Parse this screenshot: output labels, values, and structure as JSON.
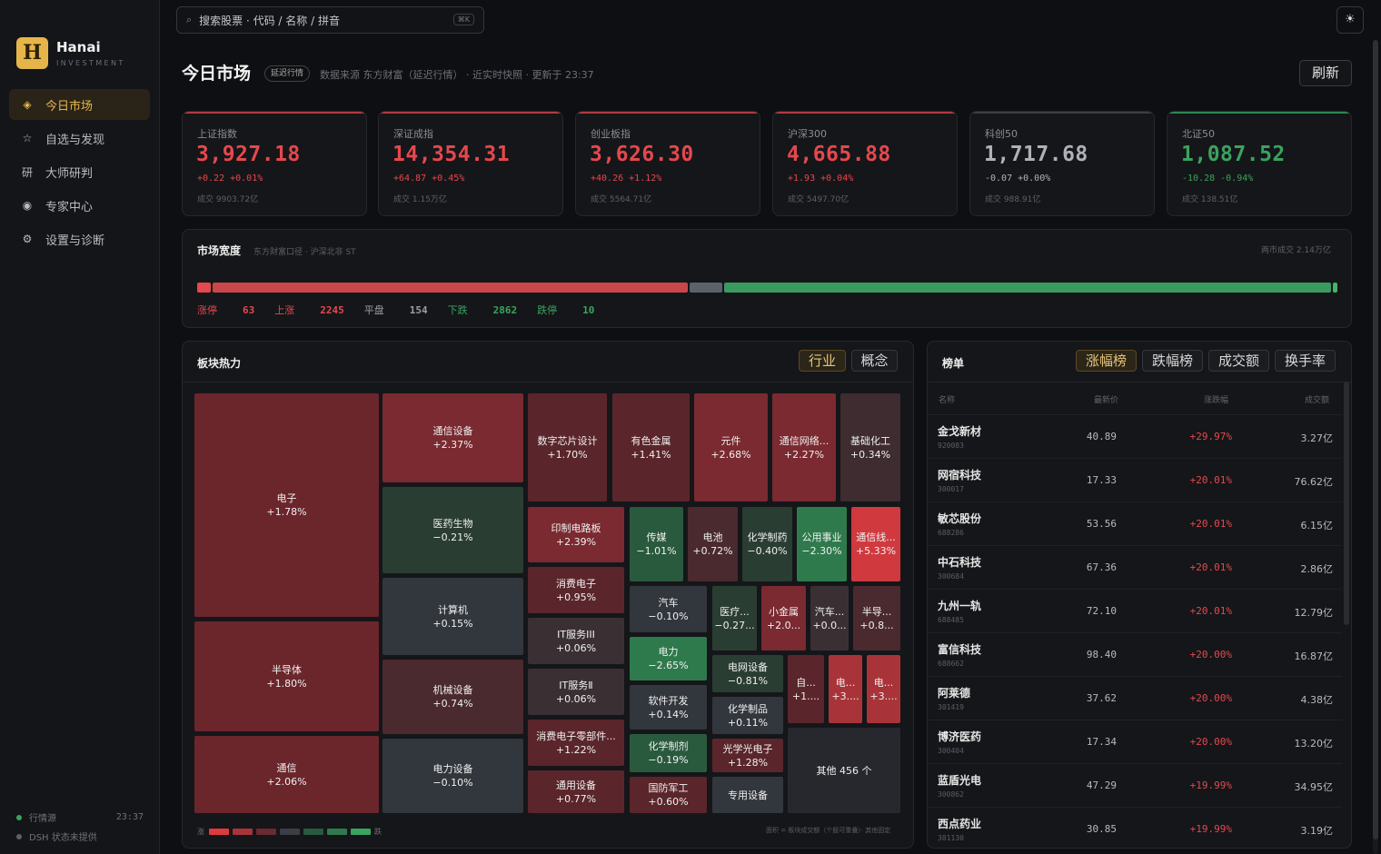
{
  "app": {
    "brand": "Hanai",
    "brand_sub": "INVESTMENT",
    "logo_letter": "H",
    "accent": "#e6b54a",
    "up_color": "#e5484d",
    "down_color": "#3aa35f"
  },
  "sidebar": {
    "items": [
      {
        "label": "今日市场",
        "icon": "diamond-icon",
        "glyph": "◈"
      },
      {
        "label": "自选与发现",
        "icon": "star-icon",
        "glyph": "☆"
      },
      {
        "label": "大师研判",
        "icon": "research-icon",
        "glyph": "研"
      },
      {
        "label": "专家中心",
        "icon": "target-icon",
        "glyph": "◉"
      },
      {
        "label": "设置与诊断",
        "icon": "gear-icon",
        "glyph": "⚙"
      }
    ],
    "footer": {
      "source_label": "行情源",
      "source_time": "23:37",
      "dsh_label": "DSH 状态未提供"
    }
  },
  "search": {
    "placeholder": "搜索股票 · 代码 / 名称 / 拼音",
    "shortcut": "⌘K"
  },
  "header": {
    "title": "今日市场",
    "badge": "延迟行情",
    "meta": "数据来源 东方财富（延迟行情） · 近实时快照 · 更新于 23:37",
    "refresh": "刷新"
  },
  "indices": [
    {
      "name": "上证指数",
      "value": "3,927.18",
      "change": "+0.22  +0.01%",
      "volume": "成交 9903.72亿",
      "dir": "up"
    },
    {
      "name": "深证成指",
      "value": "14,354.31",
      "change": "+64.87  +0.45%",
      "volume": "成交 1.15万亿",
      "dir": "up"
    },
    {
      "name": "创业板指",
      "value": "3,626.30",
      "change": "+40.26  +1.12%",
      "volume": "成交 5564.71亿",
      "dir": "up"
    },
    {
      "name": "沪深300",
      "value": "4,665.88",
      "change": "+1.93  +0.04%",
      "volume": "成交 5497.70亿",
      "dir": "up"
    },
    {
      "name": "科创50",
      "value": "1,717.68",
      "change": "-0.07  +0.00%",
      "volume": "成交 988.91亿",
      "dir": "flat"
    },
    {
      "name": "北证50",
      "value": "1,087.52",
      "change": "-10.28  -0.94%",
      "volume": "成交 138.51亿",
      "dir": "down"
    }
  ],
  "breadth": {
    "title": "市场宽度",
    "subtitle": "东方财富口径 · 沪深北非 ST",
    "total": "两市成交 2.14万亿",
    "limit_up_label": "涨停",
    "limit_up": 63,
    "up_label": "上涨",
    "up": 2245,
    "flat_label": "平盘",
    "flat": 154,
    "down_label": "下跌",
    "down": 2862,
    "limit_down_label": "跌停",
    "limit_down": 10
  },
  "sectors": {
    "title": "板块热力",
    "tabs": [
      "行业",
      "概念"
    ],
    "tiles": [
      {
        "name": "电子",
        "chg": "+1.78%"
      },
      {
        "name": "半导体",
        "chg": "+1.80%"
      },
      {
        "name": "通信",
        "chg": "+2.06%"
      },
      {
        "name": "通信设备",
        "chg": "+2.37%"
      },
      {
        "name": "医药生物",
        "chg": "−0.21%"
      },
      {
        "name": "计算机",
        "chg": "+0.15%"
      },
      {
        "name": "机械设备",
        "chg": "+0.74%"
      },
      {
        "name": "电力设备",
        "chg": "−0.10%"
      },
      {
        "name": "数字芯片设计",
        "chg": "+1.70%"
      },
      {
        "name": "有色金属",
        "chg": "+1.41%"
      },
      {
        "name": "元件",
        "chg": "+2.68%"
      },
      {
        "name": "通信网络...",
        "chg": "+2.27%"
      },
      {
        "name": "基础化工",
        "chg": "+0.34%"
      },
      {
        "name": "印制电路板",
        "chg": "+2.39%"
      },
      {
        "name": "消费电子",
        "chg": "+0.95%"
      },
      {
        "name": "IT服务III",
        "chg": "+0.06%"
      },
      {
        "name": "IT服务Ⅱ",
        "chg": "+0.06%"
      },
      {
        "name": "消费电子零部件...",
        "chg": "+1.22%"
      },
      {
        "name": "通用设备",
        "chg": "+0.77%"
      },
      {
        "name": "传媒",
        "chg": "−1.01%"
      },
      {
        "name": "电池",
        "chg": "+0.72%"
      },
      {
        "name": "化学制药",
        "chg": "−0.40%"
      },
      {
        "name": "公用事业",
        "chg": "−2.30%"
      },
      {
        "name": "通信线...",
        "chg": "+5.33%"
      },
      {
        "name": "汽车",
        "chg": "−0.10%"
      },
      {
        "name": "医疗...",
        "chg": "−0.27..."
      },
      {
        "name": "小金属",
        "chg": "+2.0..."
      },
      {
        "name": "汽车...",
        "chg": "+0.0..."
      },
      {
        "name": "半导...",
        "chg": "+0.8..."
      },
      {
        "name": "电力",
        "chg": "−2.65%"
      },
      {
        "name": "电网设备",
        "chg": "−0.81%"
      },
      {
        "name": "软件开发",
        "chg": "+0.14%"
      },
      {
        "name": "化学制品",
        "chg": "+0.11%"
      },
      {
        "name": "化学制剂",
        "chg": "−0.19%"
      },
      {
        "name": "光学光电子",
        "chg": "+1.28%"
      },
      {
        "name": "国防军工",
        "chg": "+0.60%"
      },
      {
        "name": "专用设备",
        "chg": ""
      },
      {
        "name": "自...",
        "chg": "+1...."
      },
      {
        "name": "电...",
        "chg": "+3...."
      },
      {
        "name": "电...",
        "chg": "+3...."
      },
      {
        "name": "其他 456 个",
        "chg": ""
      }
    ],
    "legend_up": "涨",
    "legend_down": "跌",
    "legend_note": "面积 = 板块成交额（个股可重叠）· 其他固定"
  },
  "ranking": {
    "title": "榜单",
    "tabs": [
      "涨幅榜",
      "跌幅榜",
      "成交额",
      "换手率"
    ],
    "headers": [
      "名称",
      "最新价",
      "涨跌幅",
      "成交额"
    ],
    "rows": [
      {
        "name": "金戈新材",
        "code": "920083",
        "price": "40.89",
        "chg": "+29.97%",
        "amount": "3.27亿"
      },
      {
        "name": "网宿科技",
        "code": "300017",
        "price": "17.33",
        "chg": "+20.01%",
        "amount": "76.62亿"
      },
      {
        "name": "敏芯股份",
        "code": "688286",
        "price": "53.56",
        "chg": "+20.01%",
        "amount": "6.15亿"
      },
      {
        "name": "中石科技",
        "code": "300684",
        "price": "67.36",
        "chg": "+20.01%",
        "amount": "2.86亿"
      },
      {
        "name": "九州一轨",
        "code": "688485",
        "price": "72.10",
        "chg": "+20.01%",
        "amount": "12.79亿"
      },
      {
        "name": "富信科技",
        "code": "688662",
        "price": "98.40",
        "chg": "+20.00%",
        "amount": "16.87亿"
      },
      {
        "name": "阿莱德",
        "code": "301419",
        "price": "37.62",
        "chg": "+20.00%",
        "amount": "4.38亿"
      },
      {
        "name": "博济医药",
        "code": "300404",
        "price": "17.34",
        "chg": "+20.00%",
        "amount": "13.20亿"
      },
      {
        "name": "蓝盾光电",
        "code": "300862",
        "price": "47.29",
        "chg": "+19.99%",
        "amount": "34.95亿"
      },
      {
        "name": "西点药业",
        "code": "301130",
        "price": "30.85",
        "chg": "+19.99%",
        "amount": "3.19亿"
      }
    ]
  }
}
